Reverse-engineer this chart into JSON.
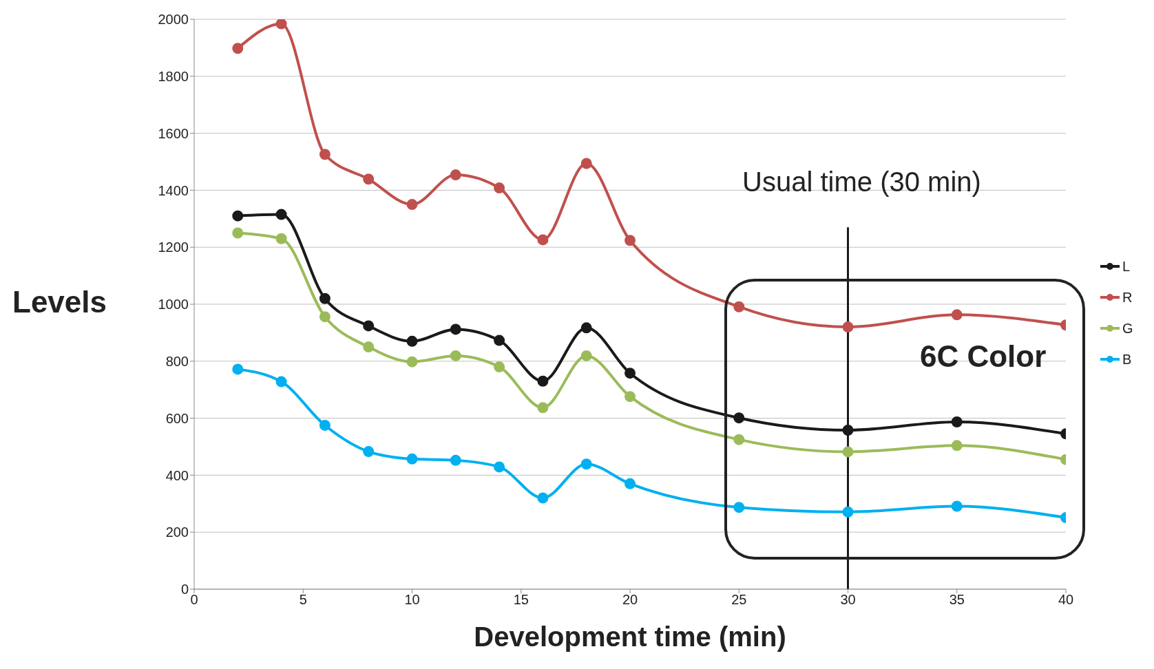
{
  "chart_data": {
    "type": "line",
    "xlabel": "Development time (min)",
    "ylabel": "Levels",
    "x": [
      2,
      4,
      6,
      8,
      10,
      12,
      14,
      16,
      18,
      20,
      25,
      30,
      35,
      40
    ],
    "series": [
      {
        "name": "L",
        "color": "#1a1a1a",
        "values": [
          1310,
          1315,
          1020,
          924,
          870,
          912,
          873,
          730,
          917,
          758,
          601,
          558,
          587,
          545
        ]
      },
      {
        "name": "R",
        "color": "#c0504d",
        "values": [
          1898,
          1984,
          1526,
          1439,
          1350,
          1454,
          1408,
          1226,
          1494,
          1224,
          991,
          920,
          963,
          927
        ]
      },
      {
        "name": "G",
        "color": "#9bbb59",
        "values": [
          1250,
          1230,
          956,
          850,
          798,
          819,
          780,
          637,
          819,
          676,
          525,
          482,
          504,
          455
        ]
      },
      {
        "name": "B",
        "color": "#00b0f0",
        "values": [
          772,
          728,
          575,
          483,
          457,
          452,
          429,
          320,
          439,
          370,
          287,
          271,
          291,
          251
        ]
      }
    ],
    "xlim": [
      0,
      40
    ],
    "xticks": [
      0,
      5,
      10,
      15,
      20,
      25,
      30,
      35,
      40
    ],
    "ylim": [
      0,
      2000
    ],
    "yticks": [
      0,
      200,
      400,
      600,
      800,
      1000,
      1200,
      1400,
      1600,
      1800,
      2000
    ],
    "grid": "y",
    "legend": "right",
    "marker": "circle",
    "line_style": "solid",
    "ref_lines": [
      {
        "axis": "x",
        "value": 30,
        "label": "Usual time (30 min)",
        "color": "#1a1a1a"
      }
    ],
    "annotations": [
      "6C Color"
    ]
  }
}
